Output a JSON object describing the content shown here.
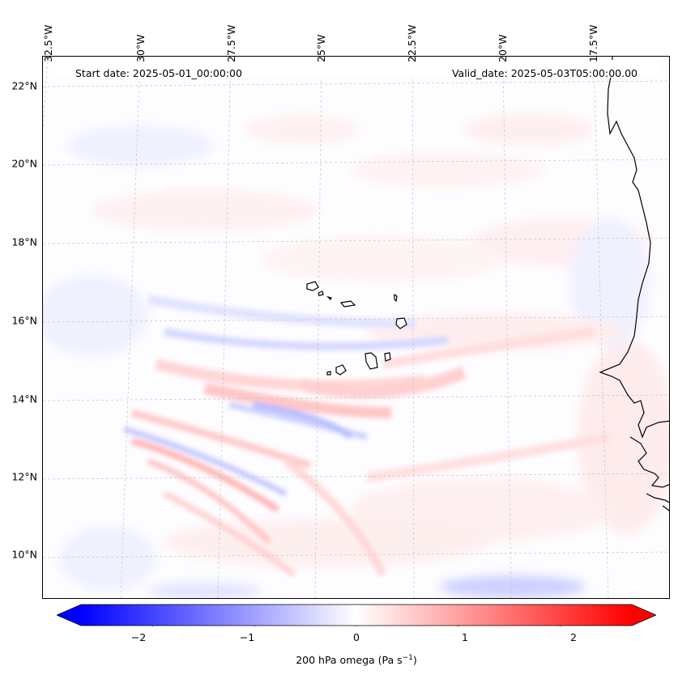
{
  "header": {
    "start_date": "Start date: 2025-05-01_00:00:00",
    "valid_date": "Valid_date: 2025-05-03T05:00:00.00"
  },
  "axes": {
    "lat_labels": [
      "22°N",
      "20°N",
      "18°N",
      "16°N",
      "14°N",
      "12°N",
      "10°N"
    ],
    "lon_labels": [
      "32.5°W",
      "30°W",
      "27.5°W",
      "25°W",
      "22.5°W",
      "20°W",
      "17.5°W"
    ]
  },
  "colorbar": {
    "ticks": [
      "−2",
      "−1",
      "0",
      "1",
      "2"
    ],
    "label_prefix": "200 hPa omega (Pa s",
    "label_exp": "−1",
    "label_suffix": ")",
    "min": -2.7,
    "max": 2.7,
    "neg_color": "#0000ff",
    "mid_color": "#ffffff",
    "pos_color": "#ff0000"
  },
  "colors": {
    "coast": "#000000",
    "grid": "#bbbbbb"
  }
}
